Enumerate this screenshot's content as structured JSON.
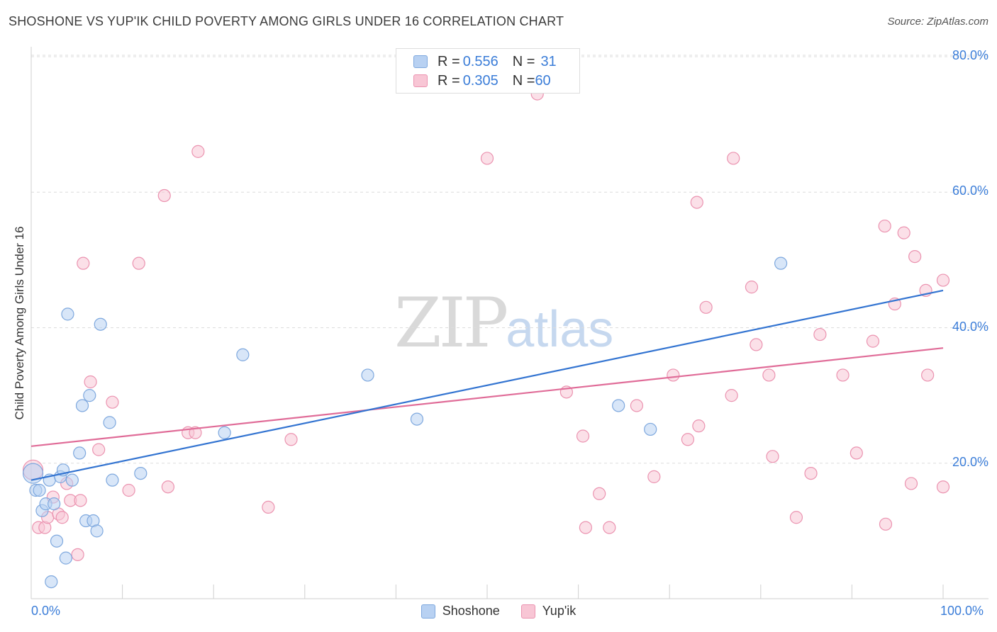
{
  "header": {
    "title": "SHOSHONE VS YUP'IK CHILD POVERTY AMONG GIRLS UNDER 16 CORRELATION CHART",
    "source": "Source: ZipAtlas.com"
  },
  "watermark": {
    "zip": "ZIP",
    "atlas": "atlas"
  },
  "legend_top": {
    "rows": [
      {
        "r_label": "R = ",
        "r_value": "0.556",
        "n_label": "N = ",
        "n_value": "31"
      },
      {
        "r_label": "R = ",
        "r_value": "0.305",
        "n_label": "N = ",
        "n_value": "60"
      }
    ]
  },
  "legend_bottom": {
    "items": [
      "Shoshone",
      "Yup'ik"
    ]
  },
  "colors": {
    "shoshone_fill": "#b8d1f2",
    "shoshone_stroke": "#7ea8de",
    "shoshone_line": "#3374d1",
    "yupik_fill": "#f8c6d5",
    "yupik_stroke": "#eb93b0",
    "yupik_line": "#e06c98",
    "tick_text": "#3b7dd8"
  },
  "chart_data": {
    "type": "scatter",
    "title": "SHOSHONE VS YUP'IK CHILD POVERTY AMONG GIRLS UNDER 16 CORRELATION CHART",
    "xlabel": "",
    "ylabel": "Child Poverty Among Girls Under 16",
    "xlim": [
      0,
      100
    ],
    "ylim": [
      0,
      80
    ],
    "x_tick_labels": [
      "0.0%",
      "100.0%"
    ],
    "y_tick_labels": [
      "20.0%",
      "40.0%",
      "60.0%",
      "80.0%"
    ],
    "y_ticks": [
      20,
      40,
      60,
      80
    ],
    "grid": true,
    "legend": "top-center",
    "series": [
      {
        "name": "Shoshone",
        "r": 0.556,
        "n": 31,
        "trend": {
          "x": [
            0,
            100
          ],
          "y": [
            17.5,
            45.5
          ]
        },
        "points": [
          {
            "x": 0.2,
            "y": 18.5,
            "big": true
          },
          {
            "x": 0.5,
            "y": 16.0
          },
          {
            "x": 0.9,
            "y": 16.0
          },
          {
            "x": 1.2,
            "y": 13.0
          },
          {
            "x": 1.6,
            "y": 14.0
          },
          {
            "x": 2.0,
            "y": 17.5
          },
          {
            "x": 2.2,
            "y": 2.5
          },
          {
            "x": 2.5,
            "y": 14.0
          },
          {
            "x": 2.8,
            "y": 8.5
          },
          {
            "x": 3.2,
            "y": 18.0
          },
          {
            "x": 3.5,
            "y": 19.0
          },
          {
            "x": 3.8,
            "y": 6.0
          },
          {
            "x": 4.0,
            "y": 42.0
          },
          {
            "x": 4.5,
            "y": 17.5
          },
          {
            "x": 5.3,
            "y": 21.5
          },
          {
            "x": 5.6,
            "y": 28.5
          },
          {
            "x": 6.0,
            "y": 11.5
          },
          {
            "x": 6.4,
            "y": 30.0
          },
          {
            "x": 6.8,
            "y": 11.5
          },
          {
            "x": 7.2,
            "y": 10.0
          },
          {
            "x": 7.6,
            "y": 40.5
          },
          {
            "x": 8.6,
            "y": 26.0
          },
          {
            "x": 8.9,
            "y": 17.5
          },
          {
            "x": 12.0,
            "y": 18.5
          },
          {
            "x": 21.2,
            "y": 24.5
          },
          {
            "x": 23.2,
            "y": 36.0
          },
          {
            "x": 36.9,
            "y": 33.0
          },
          {
            "x": 42.3,
            "y": 26.5
          },
          {
            "x": 64.4,
            "y": 28.5
          },
          {
            "x": 67.9,
            "y": 25.0
          },
          {
            "x": 82.2,
            "y": 49.5
          }
        ]
      },
      {
        "name": "Yup'ik",
        "r": 0.305,
        "n": 60,
        "trend": {
          "x": [
            0,
            100
          ],
          "y": [
            22.5,
            37.0
          ]
        },
        "points": [
          {
            "x": 0.2,
            "y": 19.0,
            "big": true
          },
          {
            "x": 0.8,
            "y": 10.5
          },
          {
            "x": 1.5,
            "y": 10.5
          },
          {
            "x": 1.8,
            "y": 12.0
          },
          {
            "x": 2.4,
            "y": 15.0
          },
          {
            "x": 3.0,
            "y": 12.5
          },
          {
            "x": 3.4,
            "y": 12.0
          },
          {
            "x": 3.9,
            "y": 17.0
          },
          {
            "x": 4.3,
            "y": 14.5
          },
          {
            "x": 5.1,
            "y": 6.5
          },
          {
            "x": 5.4,
            "y": 14.5
          },
          {
            "x": 5.7,
            "y": 49.5
          },
          {
            "x": 6.5,
            "y": 32.0
          },
          {
            "x": 7.4,
            "y": 22.0
          },
          {
            "x": 8.9,
            "y": 29.0
          },
          {
            "x": 10.7,
            "y": 16.0
          },
          {
            "x": 11.8,
            "y": 49.5
          },
          {
            "x": 14.6,
            "y": 59.5
          },
          {
            "x": 15.0,
            "y": 16.5
          },
          {
            "x": 17.2,
            "y": 24.5
          },
          {
            "x": 18.0,
            "y": 24.5
          },
          {
            "x": 18.3,
            "y": 66.0
          },
          {
            "x": 26.0,
            "y": 13.5
          },
          {
            "x": 28.5,
            "y": 23.5
          },
          {
            "x": 50.0,
            "y": 65.0
          },
          {
            "x": 55.5,
            "y": 74.5
          },
          {
            "x": 58.7,
            "y": 30.5
          },
          {
            "x": 60.5,
            "y": 24.0
          },
          {
            "x": 60.8,
            "y": 10.5
          },
          {
            "x": 62.3,
            "y": 15.5
          },
          {
            "x": 63.4,
            "y": 10.5
          },
          {
            "x": 66.4,
            "y": 28.5
          },
          {
            "x": 68.3,
            "y": 18.0
          },
          {
            "x": 70.4,
            "y": 33.0
          },
          {
            "x": 72.0,
            "y": 23.5
          },
          {
            "x": 73.0,
            "y": 58.5
          },
          {
            "x": 73.2,
            "y": 25.5
          },
          {
            "x": 74.0,
            "y": 43.0
          },
          {
            "x": 76.8,
            "y": 30.0
          },
          {
            "x": 77.0,
            "y": 65.0
          },
          {
            "x": 79.0,
            "y": 46.0
          },
          {
            "x": 79.5,
            "y": 37.5
          },
          {
            "x": 80.9,
            "y": 33.0
          },
          {
            "x": 81.3,
            "y": 21.0
          },
          {
            "x": 83.9,
            "y": 12.0
          },
          {
            "x": 85.5,
            "y": 18.5
          },
          {
            "x": 86.5,
            "y": 39.0
          },
          {
            "x": 89.0,
            "y": 33.0
          },
          {
            "x": 90.5,
            "y": 21.5
          },
          {
            "x": 92.3,
            "y": 38.0
          },
          {
            "x": 93.6,
            "y": 55.0
          },
          {
            "x": 93.7,
            "y": 11.0
          },
          {
            "x": 94.7,
            "y": 43.5
          },
          {
            "x": 95.7,
            "y": 54.0
          },
          {
            "x": 96.5,
            "y": 17.0
          },
          {
            "x": 96.9,
            "y": 50.5
          },
          {
            "x": 98.1,
            "y": 45.5
          },
          {
            "x": 98.3,
            "y": 33.0
          },
          {
            "x": 100.0,
            "y": 16.5
          },
          {
            "x": 100.0,
            "y": 47.0
          }
        ]
      }
    ]
  }
}
